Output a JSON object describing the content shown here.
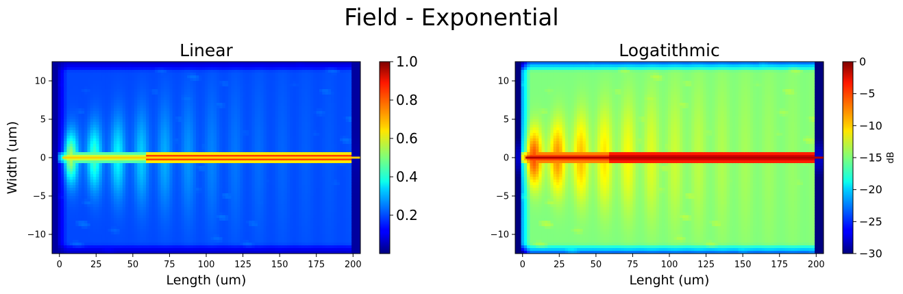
{
  "figure": {
    "title": "Field - Exponential"
  },
  "colors": {
    "background": "#ffffff",
    "axis": "#000000",
    "colormap": "jet"
  },
  "chart_data": [
    {
      "type": "heatmap",
      "title": "Linear",
      "xlabel": "Length (um)",
      "ylabel": "Width (um)",
      "xlim": [
        -5,
        205
      ],
      "ylim": [
        -12.5,
        12.5
      ],
      "xticks": [
        0,
        25,
        50,
        75,
        100,
        125,
        150,
        175,
        200
      ],
      "xtick_labels": [
        "0",
        "25",
        "50",
        "75",
        "100",
        "125",
        "150",
        "175",
        "200"
      ],
      "yticks": [
        10,
        5,
        0,
        -5,
        -10
      ],
      "ytick_labels": [
        "10",
        "5",
        "0",
        "−5",
        "−10"
      ],
      "scale": "linear",
      "colorbar": {
        "range": [
          0.0,
          1.0
        ],
        "ticks": [
          1.0,
          0.8,
          0.6,
          0.4,
          0.2
        ],
        "tick_labels": [
          "1.0",
          "0.8",
          "0.6",
          "0.4",
          "0.2"
        ],
        "label": ""
      },
      "description_of_field": "bright core along width 0, weak diffraction lobes near length 0-60"
    },
    {
      "type": "heatmap",
      "title": "Logatithmic",
      "xlabel": "Lenght (um)",
      "ylabel": "",
      "xlim": [
        -5,
        205
      ],
      "ylim": [
        -12.5,
        12.5
      ],
      "xticks": [
        0,
        25,
        50,
        75,
        100,
        125,
        150,
        175,
        200
      ],
      "xtick_labels": [
        "0",
        "25",
        "50",
        "75",
        "100",
        "125",
        "150",
        "175",
        "200"
      ],
      "yticks": [
        10,
        5,
        0,
        -5,
        -10
      ],
      "ytick_labels": [
        "10",
        "5",
        "0",
        "−5",
        "−10"
      ],
      "scale": "dB",
      "colorbar": {
        "range": [
          -30,
          0
        ],
        "ticks": [
          0,
          -5,
          -10,
          -15,
          -20,
          -25,
          -30
        ],
        "tick_labels": [
          "0",
          "−5",
          "−10",
          "−15",
          "−20",
          "−25",
          "−30"
        ],
        "label": "dB"
      }
    }
  ]
}
